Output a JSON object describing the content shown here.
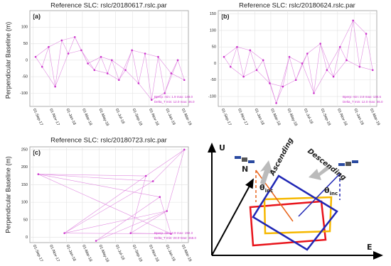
{
  "chart_data": [
    {
      "type": "network",
      "title": "Reference SLC: rslc/20180617.rslc.par",
      "panel": "(a)",
      "y_label": "Perpendicular Baseline (m)",
      "x": [
        "2017-09-10",
        "2017-10-04",
        "2017-10-28",
        "2017-11-21",
        "2017-12-15",
        "2018-01-08",
        "2018-02-01",
        "2018-02-25",
        "2018-03-21",
        "2018-04-14",
        "2018-05-08",
        "2018-06-01",
        "2018-06-17",
        "2018-07-13",
        "2018-08-06",
        "2018-08-30",
        "2018-09-23",
        "2018-10-17",
        "2018-11-10",
        "2018-12-04",
        "2018-12-28",
        "2019-01-21",
        "2019-02-14",
        "2019-03-10"
      ],
      "values": [
        10,
        -20,
        40,
        -80,
        60,
        20,
        70,
        30,
        -10,
        -30,
        10,
        -40,
        0,
        -60,
        -30,
        30,
        -70,
        20,
        -120,
        10,
        -100,
        -40,
        0,
        -60
      ],
      "edges": [
        [
          0,
          1
        ],
        [
          1,
          2
        ],
        [
          2,
          3
        ],
        [
          3,
          4
        ],
        [
          4,
          5
        ],
        [
          5,
          6
        ],
        [
          6,
          7
        ],
        [
          7,
          8
        ],
        [
          8,
          9
        ],
        [
          9,
          10
        ],
        [
          10,
          11
        ],
        [
          11,
          12
        ],
        [
          12,
          13
        ],
        [
          13,
          14
        ],
        [
          14,
          15
        ],
        [
          15,
          16
        ],
        [
          16,
          17
        ],
        [
          17,
          18
        ],
        [
          18,
          19
        ],
        [
          19,
          20
        ],
        [
          20,
          21
        ],
        [
          21,
          22
        ],
        [
          22,
          23
        ],
        [
          0,
          2
        ],
        [
          1,
          3
        ],
        [
          2,
          4
        ],
        [
          3,
          5
        ],
        [
          4,
          6
        ],
        [
          5,
          7
        ],
        [
          6,
          8
        ],
        [
          7,
          9
        ],
        [
          8,
          10
        ],
        [
          9,
          11
        ],
        [
          10,
          12
        ],
        [
          11,
          13
        ],
        [
          12,
          14
        ],
        [
          13,
          15
        ],
        [
          14,
          16
        ],
        [
          15,
          17
        ],
        [
          16,
          18
        ],
        [
          17,
          19
        ],
        [
          18,
          20
        ],
        [
          19,
          21
        ],
        [
          20,
          22
        ],
        [
          21,
          23
        ]
      ],
      "color": "#cc33cc",
      "edge_color": "#e08ae0",
      "xlim": [
        "2017-08-20",
        "2019-03-25"
      ],
      "xticks": [
        {
          "value": "2017-09-01",
          "label": "01-Sep-17"
        },
        {
          "value": "2017-11-01",
          "label": "01-Nov-17"
        },
        {
          "value": "2018-01-01",
          "label": "01-Jan-18"
        },
        {
          "value": "2018-03-01",
          "label": "01-Mar-18"
        },
        {
          "value": "2018-05-01",
          "label": "01-May-18"
        },
        {
          "value": "2018-07-01",
          "label": "01-Jul-18"
        },
        {
          "value": "2018-09-01",
          "label": "01-Sep-18"
        },
        {
          "value": "2018-11-01",
          "label": "01-Nov-18"
        },
        {
          "value": "2019-01-01",
          "label": "01-Jan-19"
        },
        {
          "value": "2019-03-01",
          "label": "01-Mar-19"
        }
      ],
      "ylim": [
        -140,
        150
      ],
      "yticks": [
        -100,
        -50,
        0,
        50,
        100
      ],
      "grid": true,
      "annotations": [
        "Bperp: min: 1.9 max: 149.0",
        "Delta_T min: 12.0 max: 36.0"
      ]
    },
    {
      "type": "network",
      "title": "Reference SLC: rslc/20180624.rslc.par",
      "panel": "(b)",
      "x": [
        "2017-09-10",
        "2017-10-04",
        "2017-10-28",
        "2017-11-21",
        "2017-12-15",
        "2018-01-08",
        "2018-02-01",
        "2018-02-25",
        "2018-03-21",
        "2018-04-14",
        "2018-05-08",
        "2018-06-01",
        "2018-06-24",
        "2018-07-13",
        "2018-08-06",
        "2018-08-30",
        "2018-09-23",
        "2018-10-17",
        "2018-11-10",
        "2018-12-04",
        "2018-12-28",
        "2019-01-21",
        "2019-02-14",
        "2019-03-10"
      ],
      "values": [
        20,
        -10,
        50,
        -40,
        40,
        -20,
        10,
        -60,
        -120,
        -70,
        20,
        -50,
        0,
        30,
        -90,
        60,
        -20,
        -40,
        50,
        10,
        130,
        -10,
        90,
        -20
      ],
      "edges": [
        [
          0,
          1
        ],
        [
          1,
          2
        ],
        [
          2,
          3
        ],
        [
          3,
          4
        ],
        [
          4,
          5
        ],
        [
          5,
          6
        ],
        [
          6,
          7
        ],
        [
          7,
          8
        ],
        [
          8,
          9
        ],
        [
          9,
          10
        ],
        [
          10,
          11
        ],
        [
          11,
          12
        ],
        [
          12,
          13
        ],
        [
          13,
          14
        ],
        [
          14,
          15
        ],
        [
          15,
          16
        ],
        [
          16,
          17
        ],
        [
          17,
          18
        ],
        [
          18,
          19
        ],
        [
          19,
          20
        ],
        [
          20,
          21
        ],
        [
          21,
          22
        ],
        [
          22,
          23
        ],
        [
          0,
          2
        ],
        [
          1,
          3
        ],
        [
          2,
          4
        ],
        [
          3,
          5
        ],
        [
          4,
          6
        ],
        [
          5,
          7
        ],
        [
          6,
          8
        ],
        [
          7,
          9
        ],
        [
          8,
          10
        ],
        [
          9,
          11
        ],
        [
          10,
          12
        ],
        [
          11,
          13
        ],
        [
          12,
          14
        ],
        [
          13,
          15
        ],
        [
          14,
          16
        ],
        [
          15,
          17
        ],
        [
          16,
          18
        ],
        [
          17,
          19
        ],
        [
          18,
          20
        ],
        [
          19,
          21
        ],
        [
          20,
          22
        ],
        [
          21,
          23
        ]
      ],
      "color": "#cc33cc",
      "edge_color": "#e08ae0",
      "xlim": [
        "2017-08-20",
        "2019-03-25"
      ],
      "xticks": [
        {
          "value": "2017-09-01",
          "label": "01-Sep-17"
        },
        {
          "value": "2017-11-01",
          "label": "01-Nov-17"
        },
        {
          "value": "2018-01-01",
          "label": "01-Jan-18"
        },
        {
          "value": "2018-03-01",
          "label": "01-Mar-18"
        },
        {
          "value": "2018-05-01",
          "label": "01-May-18"
        },
        {
          "value": "2018-07-01",
          "label": "01-Jul-18"
        },
        {
          "value": "2018-09-01",
          "label": "01-Sep-18"
        },
        {
          "value": "2018-11-01",
          "label": "01-Nov-18"
        },
        {
          "value": "2019-01-01",
          "label": "01-Jan-19"
        },
        {
          "value": "2019-03-01",
          "label": "01-Mar-19"
        }
      ],
      "ylim": [
        -130,
        160
      ],
      "yticks": [
        -100,
        -50,
        0,
        50,
        100,
        150
      ],
      "grid": true,
      "annotations": [
        "Bperp: min: 2.8 max: 138.6",
        "Delta_T min: 12.0 max: 36.0"
      ]
    },
    {
      "type": "network",
      "title": "Reference SLC: rslc/20180723.rslc.par",
      "panel": "(c)",
      "y_label": "Perpendicular Baseline (m)",
      "x": [
        "2017-09-20",
        "2017-12-25",
        "2018-04-20",
        "2018-08-25",
        "2018-10-20",
        "2018-11-15",
        "2018-12-10",
        "2019-01-05",
        "2019-01-20",
        "2019-03-10"
      ],
      "values": [
        180,
        12,
        -10,
        12,
        175,
        160,
        115,
        75,
        10,
        250
      ],
      "edges": [
        [
          0,
          4
        ],
        [
          0,
          5
        ],
        [
          0,
          6
        ],
        [
          0,
          8
        ],
        [
          1,
          4
        ],
        [
          1,
          5
        ],
        [
          1,
          7
        ],
        [
          1,
          8
        ],
        [
          2,
          6
        ],
        [
          2,
          7
        ],
        [
          3,
          4
        ],
        [
          3,
          7
        ],
        [
          3,
          8
        ],
        [
          4,
          9
        ],
        [
          5,
          9
        ],
        [
          6,
          8
        ],
        [
          7,
          9
        ]
      ],
      "color": "#cc33cc",
      "edge_color": "#e08ae0",
      "xlim": [
        "2017-08-20",
        "2019-03-25"
      ],
      "xticks": [
        {
          "value": "2017-09-01",
          "label": "01-Sep-17"
        },
        {
          "value": "2017-11-01",
          "label": "01-Nov-17"
        },
        {
          "value": "2018-01-01",
          "label": "01-Jan-18"
        },
        {
          "value": "2018-03-01",
          "label": "01-Mar-18"
        },
        {
          "value": "2018-05-01",
          "label": "01-May-18"
        },
        {
          "value": "2018-07-01",
          "label": "01-Jul-18"
        },
        {
          "value": "2018-09-01",
          "label": "01-Sep-18"
        },
        {
          "value": "2018-11-01",
          "label": "01-Nov-18"
        },
        {
          "value": "2019-01-01",
          "label": "01-Jan-19"
        },
        {
          "value": "2019-03-01",
          "label": "01-Mar-19"
        }
      ],
      "ylim": [
        -15,
        258
      ],
      "yticks": [
        0,
        50,
        100,
        150,
        200,
        250
      ],
      "grid": true,
      "annotations": [
        "Bperp: min: 3.9 max: 192.3",
        "Delta_T min: 24.0 max: 468.0"
      ]
    }
  ],
  "diagram": {
    "up": "U",
    "north": "N",
    "east": "E",
    "ascending": "Ascending",
    "descending": "Descending",
    "ascending_angle": {
      "symbol": "θ",
      "subscript": "inc"
    },
    "descending_angle": {
      "symbol": "θ",
      "subscript": "inc"
    }
  }
}
